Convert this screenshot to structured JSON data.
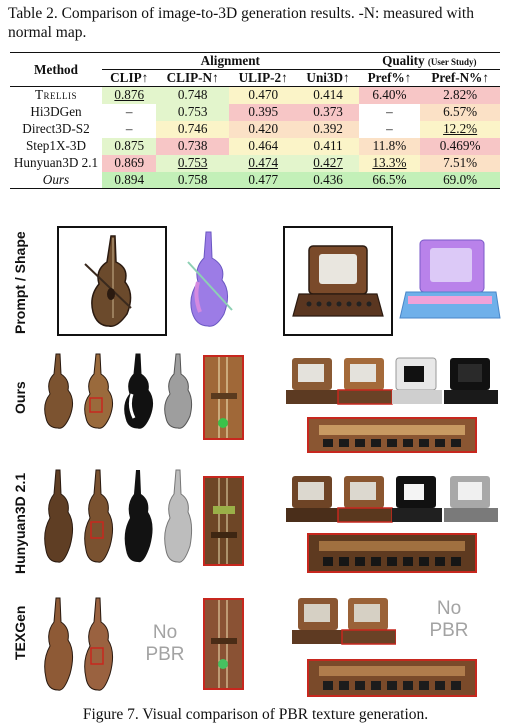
{
  "table_caption": "Table 2. Comparison of image-to-3D generation results. -N: measured with normal map.",
  "table": {
    "method_header": "Method",
    "group_alignment": "Alignment",
    "group_quality": "Quality",
    "group_quality_note": "(User Study)",
    "columns": [
      "CLIP↑",
      "CLIP-N↑",
      "ULIP-2↑",
      "Uni3D↑",
      "Pref%↑",
      "Pref-N%↑"
    ],
    "rows": [
      {
        "method": "Trellis",
        "cells": [
          "0.876",
          "0.748",
          "0.470",
          "0.414",
          "6.40%",
          "2.82%"
        ]
      },
      {
        "method": "Hi3DGen",
        "cells": [
          "–",
          "0.753",
          "0.395",
          "0.373",
          "–",
          "6.57%"
        ]
      },
      {
        "method": "Direct3D-S2",
        "cells": [
          "–",
          "0.746",
          "0.420",
          "0.392",
          "–",
          "12.2%"
        ]
      },
      {
        "method": "Step1X-3D",
        "cells": [
          "0.875",
          "0.738",
          "0.464",
          "0.411",
          "11.8%",
          "0.469%"
        ]
      },
      {
        "method": "Hunyuan3D 2.1",
        "cells": [
          "0.869",
          "0.753",
          "0.474",
          "0.427",
          "13.3%",
          "7.51%"
        ]
      },
      {
        "method": "Ours",
        "cells": [
          "0.894",
          "0.758",
          "0.477",
          "0.436",
          "66.5%",
          "69.0%"
        ]
      }
    ]
  },
  "figure": {
    "row_labels": [
      "Prompt / Shape",
      "Ours",
      "Hunyuan3D 2.1",
      "TEXGen"
    ],
    "no_pbr_text": "No PBR",
    "caption": "Figure 7. Visual comparison of PBR texture generation."
  },
  "colors": {
    "green": "#c3f0b8",
    "light_green": "#e3f5cc",
    "yellow": "#fbf4c8",
    "orange": "#fbe1c6",
    "red": "#f7c6c6",
    "highlight_box": "#c7271e"
  }
}
